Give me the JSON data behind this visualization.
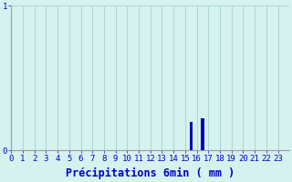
{
  "hours": [
    0,
    1,
    2,
    3,
    4,
    5,
    6,
    7,
    8,
    9,
    10,
    11,
    12,
    13,
    14,
    15,
    16,
    17,
    18,
    19,
    20,
    21,
    22,
    23
  ],
  "values": [
    0,
    0,
    0,
    0,
    0,
    0,
    0,
    0,
    0,
    0,
    0,
    0,
    0,
    0,
    0,
    0.2,
    0.22,
    0,
    0,
    0,
    0,
    0,
    0,
    0
  ],
  "xlim": [
    0,
    24
  ],
  "ylim": [
    0,
    1.0
  ],
  "ytick_vals": [
    0,
    1
  ],
  "ytick_labels": [
    "0",
    "1"
  ],
  "xlabel": "Précipitations 6min ( mm )",
  "bar_color": "#0000bb",
  "bg_color": "#d6f2ee",
  "grid_color": "#aed8d2",
  "spine_color": "#9999aa",
  "label_color": "#0000cc",
  "tick_fontsize": 6.5,
  "xlabel_fontsize": 8.5,
  "bar_width": 0.25
}
